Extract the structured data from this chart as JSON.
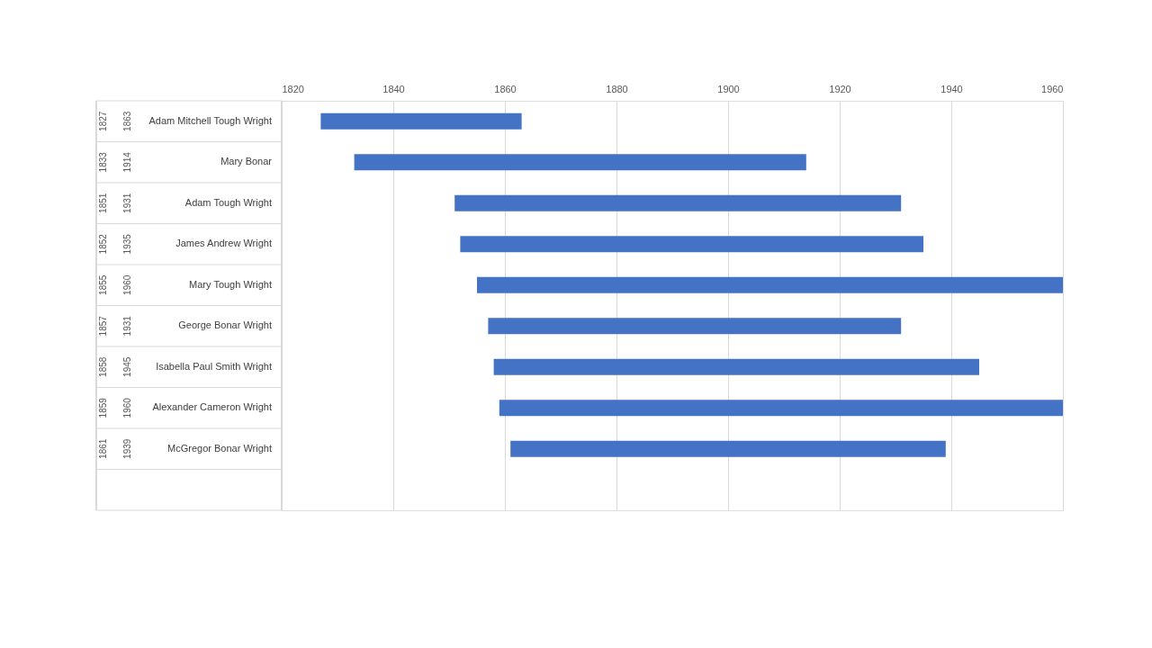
{
  "chart_data": {
    "type": "bar",
    "orientation": "horizontal",
    "categories": [
      "Adam Mitchell Tough Wright",
      "Mary Bonar",
      "Adam Tough Wright",
      "James Andrew Wright",
      "Mary Tough Wright",
      "George Bonar Wright",
      "Isabella Paul Smith Wright",
      "Alexander Cameron Wright",
      "McGregor Bonar Wright",
      null
    ],
    "base": [
      1827,
      1833,
      1851,
      1852,
      1855,
      1857,
      1858,
      1859,
      1861,
      null
    ],
    "values": [
      36,
      81,
      80,
      83,
      105,
      74,
      87,
      101,
      78,
      null
    ],
    "color": "#4472c4",
    "xlim": [
      1820,
      1960
    ],
    "xticks": [
      1820,
      1840,
      1860,
      1880,
      1900,
      1920,
      1940,
      1960
    ],
    "grid": "x",
    "annotations": [
      "1827",
      "1863",
      "1833",
      "1914",
      "1851",
      "1931",
      "1852",
      "1935",
      "1855",
      "1960",
      "1857",
      "1931",
      "1858",
      "1945",
      "1859",
      "1960",
      "1861",
      "1939"
    ]
  }
}
